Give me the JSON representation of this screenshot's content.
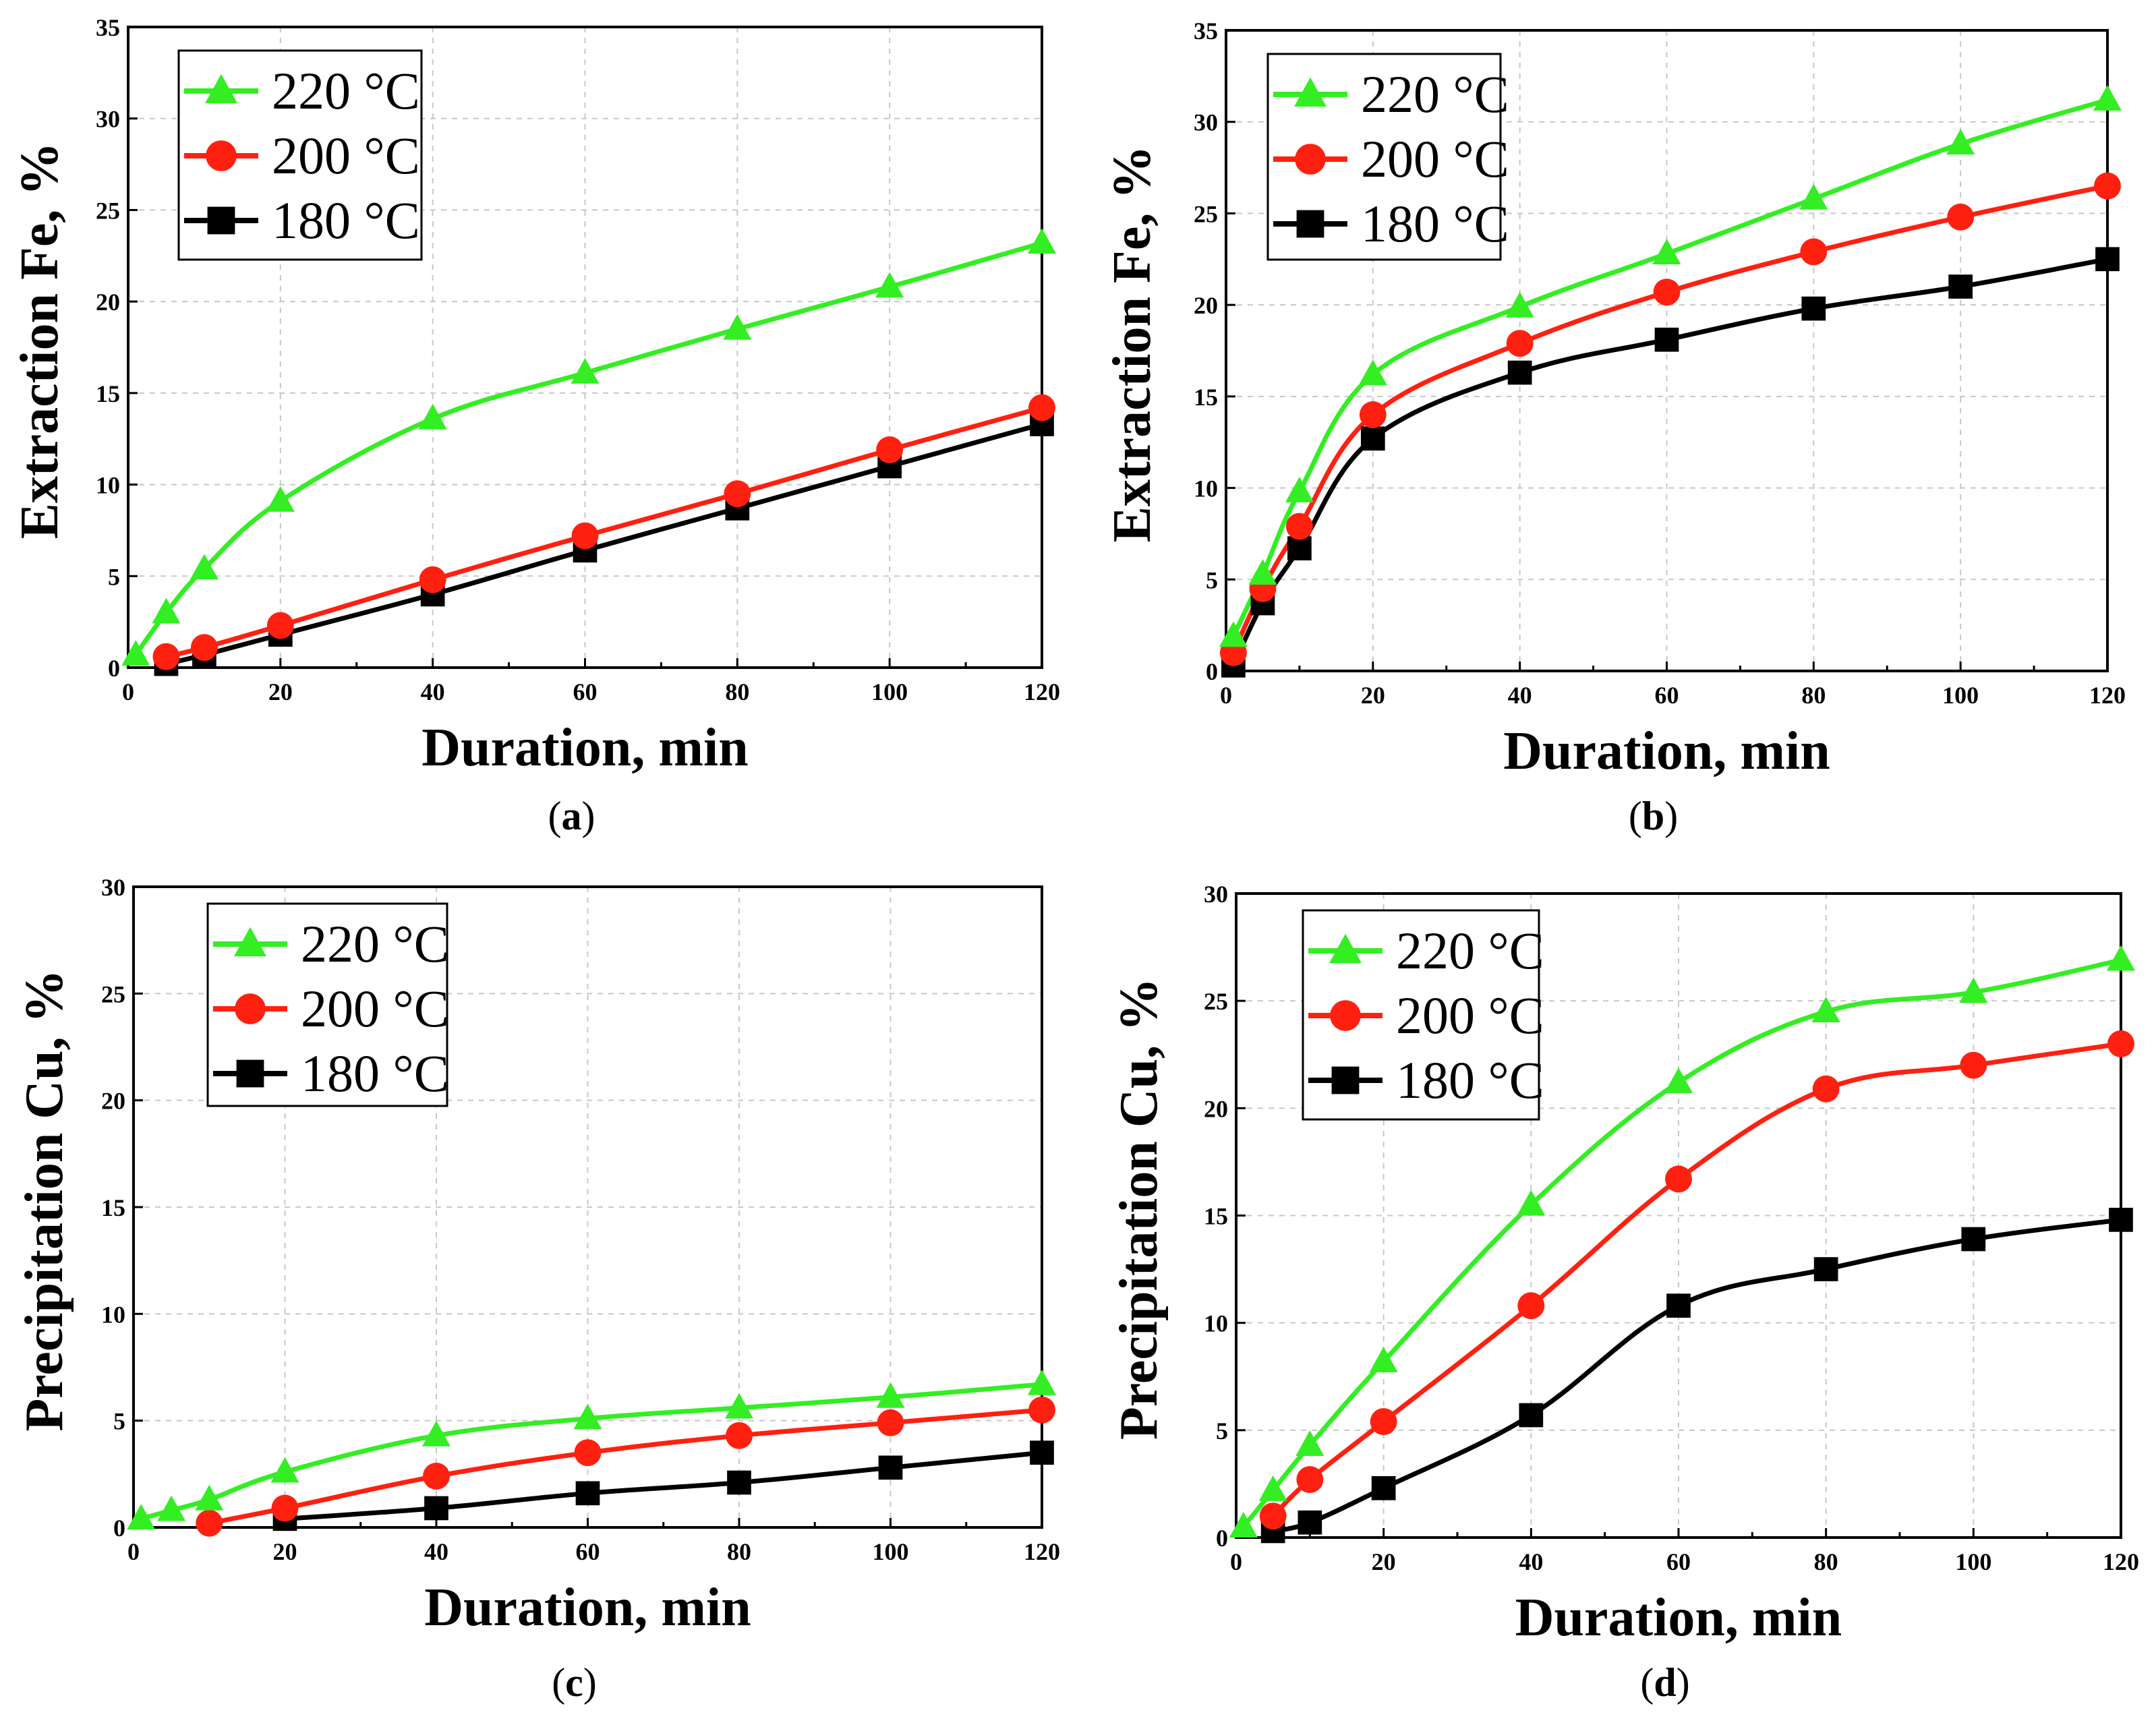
{
  "colors": {
    "220": "#33ee22",
    "200": "#ff2010",
    "180": "#000000"
  },
  "chart_data": [
    {
      "panel": "(a)",
      "panel_letter": "a",
      "type": "line",
      "xlabel": "Duration,  min",
      "ylabel": "Extraction Fe,  %",
      "xlim": [
        0,
        120
      ],
      "ylim": [
        0,
        35
      ],
      "xticks": [
        0,
        20,
        40,
        60,
        80,
        100,
        120
      ],
      "yticks": [
        0,
        5,
        10,
        15,
        20,
        25,
        30,
        35
      ],
      "grid": true,
      "legend_position": "top-left",
      "series": [
        {
          "name": "220 °C",
          "marker": "triangle",
          "color": "#33ee22",
          "x": [
            1,
            5,
            10,
            20,
            40,
            60,
            80,
            100,
            120
          ],
          "y": [
            0.7,
            3.0,
            5.4,
            9.1,
            13.6,
            16.1,
            18.5,
            20.8,
            23.2
          ]
        },
        {
          "name": "200 °C",
          "marker": "circle",
          "color": "#ff2010",
          "x": [
            5,
            10,
            20,
            40,
            60,
            80,
            100,
            120
          ],
          "y": [
            0.6,
            1.1,
            2.3,
            4.8,
            7.2,
            9.5,
            11.9,
            14.2
          ]
        },
        {
          "name": "180 °C",
          "marker": "square",
          "color": "#000000",
          "x": [
            5,
            10,
            20,
            40,
            60,
            80,
            100,
            120
          ],
          "y": [
            0.2,
            0.7,
            1.8,
            4.0,
            6.4,
            8.7,
            11.0,
            13.3
          ]
        }
      ]
    },
    {
      "panel": "(b)",
      "panel_letter": "b",
      "type": "line",
      "xlabel": "Duration,  min",
      "ylabel": "Extraction Fe,  %",
      "xlim": [
        0,
        120
      ],
      "ylim": [
        0,
        35
      ],
      "xticks": [
        0,
        20,
        40,
        60,
        80,
        100,
        120
      ],
      "yticks": [
        0,
        5,
        10,
        15,
        20,
        25,
        30,
        35
      ],
      "grid": true,
      "legend_position": "top-left",
      "series": [
        {
          "name": "220 °C",
          "marker": "triangle",
          "color": "#33ee22",
          "x": [
            1,
            5,
            10,
            20,
            40,
            60,
            80,
            100,
            120
          ],
          "y": [
            1.9,
            5.3,
            9.8,
            16.2,
            19.9,
            22.8,
            25.8,
            28.8,
            31.2
          ]
        },
        {
          "name": "200 °C",
          "marker": "circle",
          "color": "#ff2010",
          "x": [
            1,
            5,
            10,
            20,
            40,
            60,
            80,
            100,
            120
          ],
          "y": [
            1.0,
            4.5,
            7.9,
            14.0,
            17.9,
            20.7,
            22.9,
            24.8,
            26.5
          ]
        },
        {
          "name": "180 °C",
          "marker": "square",
          "color": "#000000",
          "x": [
            1,
            5,
            10,
            20,
            40,
            60,
            80,
            100,
            120
          ],
          "y": [
            0.3,
            3.7,
            6.7,
            12.7,
            16.3,
            18.1,
            19.8,
            21.0,
            22.5
          ]
        }
      ]
    },
    {
      "panel": "(c)",
      "panel_letter": "c",
      "type": "line",
      "xlabel": "Duration,  min",
      "ylabel": "Precipitation Cu,  %",
      "xlim": [
        0,
        120
      ],
      "ylim": [
        0,
        30
      ],
      "xticks": [
        0,
        20,
        40,
        60,
        80,
        100,
        120
      ],
      "yticks": [
        0,
        5,
        10,
        15,
        20,
        25,
        30
      ],
      "grid": true,
      "legend_position": "top-left",
      "series": [
        {
          "name": "220 °C",
          "marker": "triangle",
          "color": "#33ee22",
          "x": [
            1,
            5,
            10,
            20,
            40,
            60,
            80,
            100,
            120
          ],
          "y": [
            0.4,
            0.8,
            1.3,
            2.6,
            4.3,
            5.1,
            5.6,
            6.1,
            6.7
          ]
        },
        {
          "name": "200 °C",
          "marker": "circle",
          "color": "#ff2010",
          "x": [
            10,
            20,
            40,
            60,
            80,
            100,
            120
          ],
          "y": [
            0.2,
            0.9,
            2.4,
            3.5,
            4.3,
            4.9,
            5.5
          ]
        },
        {
          "name": "180 °C",
          "marker": "square",
          "color": "#000000",
          "x": [
            20,
            40,
            60,
            80,
            100,
            120
          ],
          "y": [
            0.4,
            0.9,
            1.6,
            2.1,
            2.8,
            3.5
          ]
        }
      ]
    },
    {
      "panel": "(d)",
      "panel_letter": "d",
      "type": "line",
      "xlabel": "Duration,  min",
      "ylabel": "Precipitation Cu,  %",
      "xlim": [
        0,
        120
      ],
      "ylim": [
        0,
        30
      ],
      "xticks": [
        0,
        20,
        40,
        60,
        80,
        100,
        120
      ],
      "yticks": [
        0,
        5,
        10,
        15,
        20,
        25,
        30
      ],
      "grid": true,
      "legend_position": "top-left",
      "series": [
        {
          "name": "220 °C",
          "marker": "triangle",
          "color": "#33ee22",
          "x": [
            1,
            5,
            10,
            20,
            40,
            60,
            80,
            100,
            120
          ],
          "y": [
            0.5,
            2.2,
            4.3,
            8.2,
            15.5,
            21.2,
            24.5,
            25.4,
            26.9
          ]
        },
        {
          "name": "200 °C",
          "marker": "circle",
          "color": "#ff2010",
          "x": [
            5,
            10,
            20,
            40,
            60,
            80,
            100,
            120
          ],
          "y": [
            1.0,
            2.7,
            5.4,
            10.8,
            16.7,
            20.9,
            22.0,
            23.0
          ]
        },
        {
          "name": "180 °C",
          "marker": "square",
          "color": "#000000",
          "x": [
            5,
            10,
            20,
            40,
            60,
            80,
            100,
            120
          ],
          "y": [
            0.3,
            0.7,
            2.3,
            5.7,
            10.8,
            12.5,
            13.9,
            14.8
          ]
        }
      ]
    }
  ]
}
